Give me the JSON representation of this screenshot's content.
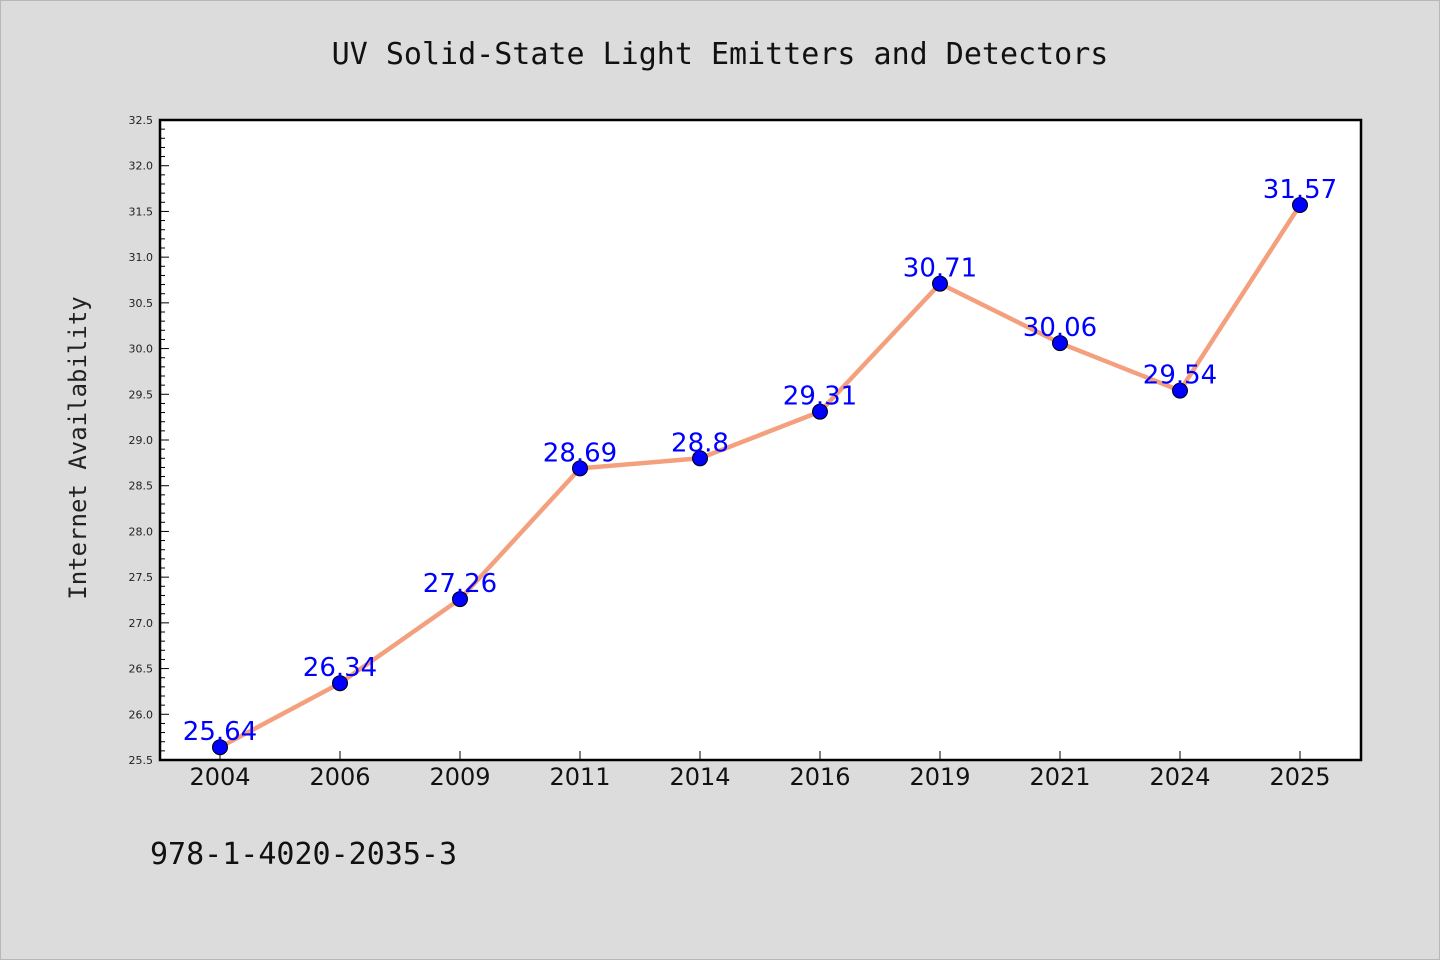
{
  "chart_data": {
    "type": "line",
    "title": "UV Solid-State Light Emitters and Detectors",
    "xlabel": "",
    "ylabel": "Internet Availability",
    "categories": [
      "2004",
      "2006",
      "2009",
      "2011",
      "2014",
      "2016",
      "2019",
      "2021",
      "2024",
      "2025"
    ],
    "series": [
      {
        "values": [
          25.64,
          26.34,
          27.26,
          28.69,
          28.8,
          29.31,
          30.71,
          30.06,
          29.54,
          31.57
        ],
        "data_labels": [
          "25.64",
          "26.34",
          "27.26",
          "28.69",
          "28.8",
          "29.31",
          "30.71",
          "30.06",
          "29.54",
          "31.57"
        ]
      }
    ],
    "ylim": [
      25.5,
      32.5
    ],
    "yticks": [
      "25.5",
      "26.0",
      "26.5",
      "27.0",
      "27.5",
      "28.0",
      "28.5",
      "29.0",
      "29.5",
      "30.0",
      "30.5",
      "31.0",
      "31.5",
      "32.0",
      "32.5"
    ],
    "grid": false,
    "legend": "none",
    "colors": {
      "line": "#f4a07e",
      "marker": "#0000ff",
      "data_label": "#0000ff",
      "plot_bg": "#ffffff",
      "page_bg": "#dcdcdc"
    }
  },
  "footnote": "978-1-4020-2035-3"
}
